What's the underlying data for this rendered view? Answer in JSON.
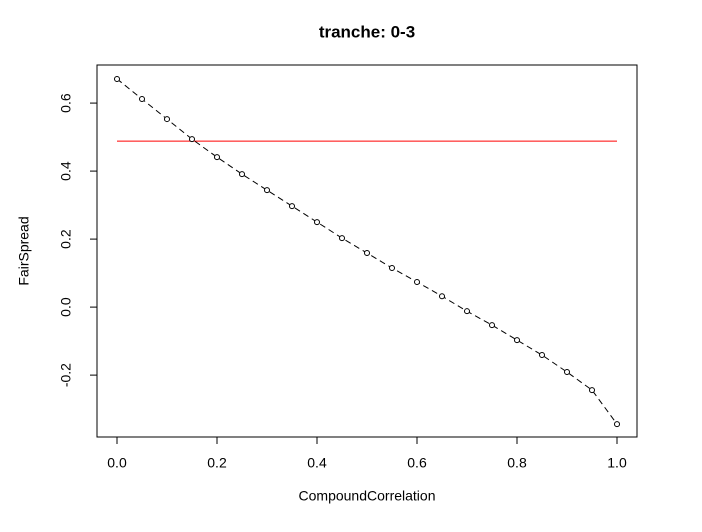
{
  "chart_data": {
    "type": "line",
    "title": "tranche:  0-3",
    "x_label": "CompoundCorrelation",
    "y_label": "FairSpread",
    "x": [
      0,
      0.05,
      0.1,
      0.15,
      0.2,
      0.25,
      0.3,
      0.35,
      0.4,
      0.45,
      0.5,
      0.55,
      0.6,
      0.65,
      0.7,
      0.75,
      0.8,
      0.85,
      0.9,
      0.95,
      1.0
    ],
    "values": [
      0.671,
      0.612,
      0.553,
      0.494,
      0.441,
      0.391,
      0.344,
      0.297,
      0.25,
      0.203,
      0.159,
      0.115,
      0.074,
      0.032,
      -0.012,
      -0.053,
      -0.097,
      -0.141,
      -0.191,
      -0.244,
      -0.344
    ],
    "color": "#000000",
    "reference_line": {
      "y": 0.488,
      "x": [
        0,
        1
      ],
      "color": "#ff0000"
    },
    "xlim": [
      -0.04,
      1.04
    ],
    "xticks": [
      {
        "value": 0,
        "label": "0.0"
      },
      0.2,
      0.4,
      0.6,
      0.8,
      {
        "value": 1,
        "label": "1.0"
      }
    ],
    "ylim": [
      -0.382,
      0.712
    ],
    "yticks": [
      -0.2,
      {
        "value": 0,
        "label": "0.0"
      },
      0.2,
      0.4,
      0.6
    ]
  }
}
